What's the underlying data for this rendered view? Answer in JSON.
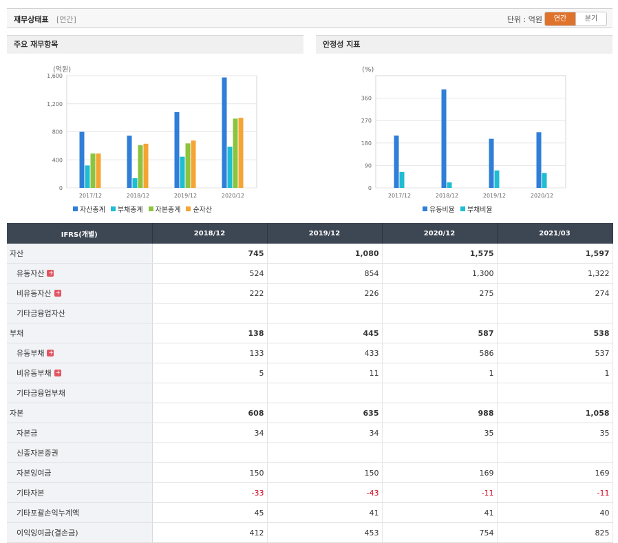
{
  "header": {
    "title": "재무상태표",
    "subtitle": "[연간]",
    "unit": "단위 : 억원",
    "toggle": [
      "연간",
      "분기"
    ]
  },
  "panels": {
    "left_title": "주요 재무항목",
    "right_title": "안정성 지표"
  },
  "colors": {
    "blue": "#2f7ed8",
    "cyan": "#1fbcd2",
    "green": "#8cc43e",
    "orange": "#f4a534"
  },
  "chart_data": [
    {
      "type": "bar",
      "ylabel": "(억원)",
      "categories": [
        "2017/12",
        "2018/12",
        "2019/12",
        "2020/12"
      ],
      "ylim": [
        0,
        1600
      ],
      "yticks": [
        0,
        400,
        800,
        1200,
        1600
      ],
      "ytick_labels": [
        "0",
        "400",
        "800",
        "1,200",
        "1,600"
      ],
      "series": [
        {
          "name": "자산총계",
          "values": [
            800,
            745,
            1080,
            1575
          ]
        },
        {
          "name": "부채총계",
          "values": [
            320,
            138,
            445,
            587
          ]
        },
        {
          "name": "자본총계",
          "values": [
            490,
            608,
            635,
            988
          ]
        },
        {
          "name": "순자산",
          "values": [
            490,
            630,
            675,
            1000
          ]
        }
      ],
      "legend": "bottom"
    },
    {
      "type": "bar",
      "ylabel": "(%)",
      "categories": [
        "2017/12",
        "2018/12",
        "2019/12",
        "2020/12"
      ],
      "ylim": [
        0,
        450
      ],
      "yticks": [
        0,
        90,
        180,
        270,
        360
      ],
      "ytick_labels": [
        "0",
        "90",
        "180",
        "270",
        "360"
      ],
      "series": [
        {
          "name": "유동비율",
          "values": [
            210,
            395,
            197,
            223
          ]
        },
        {
          "name": "부채비율",
          "values": [
            64,
            22,
            70,
            60
          ]
        }
      ],
      "legend": "bottom"
    }
  ],
  "table": {
    "columns": [
      "IFRS(개별)",
      "2018/12",
      "2019/12",
      "2020/12",
      "2021/03"
    ],
    "rows": [
      {
        "label": "자산",
        "level": 0,
        "plus": false,
        "values": [
          "745",
          "1,080",
          "1,575",
          "1,597"
        ]
      },
      {
        "label": "유동자산",
        "level": 1,
        "plus": true,
        "values": [
          "524",
          "854",
          "1,300",
          "1,322"
        ]
      },
      {
        "label": "비유동자산",
        "level": 1,
        "plus": true,
        "values": [
          "222",
          "226",
          "275",
          "274"
        ]
      },
      {
        "label": "기타금융업자산",
        "level": 1,
        "plus": false,
        "values": [
          "",
          "",
          "",
          ""
        ]
      },
      {
        "label": "부채",
        "level": 0,
        "plus": false,
        "values": [
          "138",
          "445",
          "587",
          "538"
        ]
      },
      {
        "label": "유동부채",
        "level": 1,
        "plus": true,
        "values": [
          "133",
          "433",
          "586",
          "537"
        ]
      },
      {
        "label": "비유동부채",
        "level": 1,
        "plus": true,
        "values": [
          "5",
          "11",
          "1",
          "1"
        ]
      },
      {
        "label": "기타금융업부채",
        "level": 1,
        "plus": false,
        "values": [
          "",
          "",
          "",
          ""
        ]
      },
      {
        "label": "자본",
        "level": 0,
        "plus": false,
        "values": [
          "608",
          "635",
          "988",
          "1,058"
        ]
      },
      {
        "label": "자본금",
        "level": 1,
        "plus": false,
        "values": [
          "34",
          "34",
          "35",
          "35"
        ]
      },
      {
        "label": "신종자본증권",
        "level": 1,
        "plus": false,
        "values": [
          "",
          "",
          "",
          ""
        ]
      },
      {
        "label": "자본잉여금",
        "level": 1,
        "plus": false,
        "values": [
          "150",
          "150",
          "169",
          "169"
        ]
      },
      {
        "label": "기타자본",
        "level": 1,
        "plus": false,
        "values": [
          "-33",
          "-43",
          "-11",
          "-11"
        ]
      },
      {
        "label": "기타포괄손익누계액",
        "level": 1,
        "plus": false,
        "values": [
          "45",
          "41",
          "41",
          "40"
        ]
      },
      {
        "label": "이익잉여금(결손금)",
        "level": 1,
        "plus": false,
        "values": [
          "412",
          "453",
          "754",
          "825"
        ]
      }
    ]
  }
}
